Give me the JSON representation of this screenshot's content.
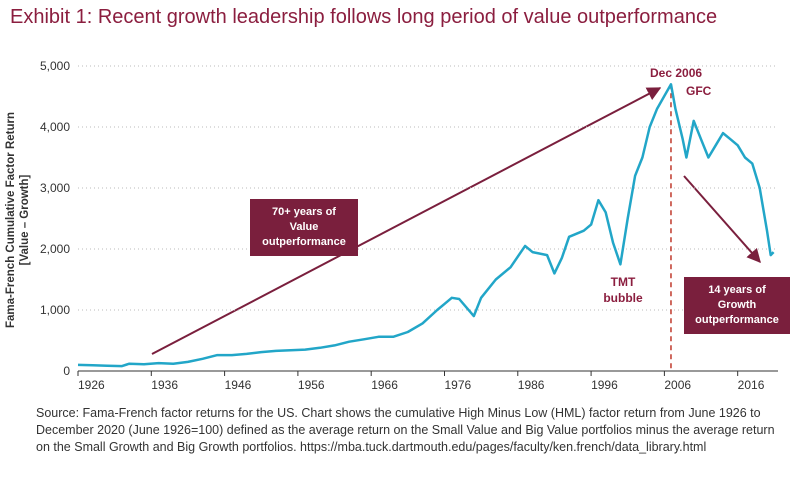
{
  "chart_data": {
    "type": "line",
    "title": "Exhibit 1: Recent growth leadership follows long period of value outperformance",
    "ylabel": [
      "Fama-French Cumulative Factor Return",
      "[Value – Growth]"
    ],
    "x": [
      1926,
      1928,
      1930,
      1932,
      1933,
      1935,
      1937,
      1939,
      1941,
      1943,
      1945,
      1947,
      1949,
      1951,
      1953,
      1955,
      1957,
      1959,
      1961,
      1963,
      1965,
      1967,
      1969,
      1971,
      1973,
      1975,
      1976,
      1977,
      1978,
      1980,
      1981,
      1983,
      1985,
      1987,
      1988,
      1990,
      1991,
      1992,
      1993,
      1995,
      1996,
      1997,
      1998,
      1999,
      2000,
      2001,
      2002,
      2003,
      2004,
      2005,
      2006.9,
      2007.5,
      2008.5,
      2009,
      2010,
      2011,
      2012,
      2013,
      2014,
      2015,
      2016,
      2017,
      2018,
      2019,
      2020,
      2020.5,
      2020.9
    ],
    "values": [
      100,
      95,
      85,
      80,
      120,
      110,
      130,
      120,
      150,
      200,
      260,
      260,
      280,
      310,
      330,
      340,
      350,
      380,
      420,
      480,
      520,
      560,
      560,
      640,
      780,
      1000,
      1100,
      1200,
      1180,
      900,
      1200,
      1500,
      1700,
      2050,
      1950,
      1900,
      1600,
      1850,
      2200,
      2300,
      2400,
      2800,
      2600,
      2100,
      1750,
      2500,
      3200,
      3500,
      4000,
      4300,
      4700,
      4300,
      3800,
      3500,
      4100,
      3800,
      3500,
      3700,
      3900,
      3800,
      3700,
      3500,
      3400,
      3000,
      2300,
      1900,
      1950
    ],
    "color": "#22a6c8",
    "xlim": [
      1926,
      2021.5
    ],
    "xticks": [
      1926,
      1936,
      1946,
      1956,
      1966,
      1976,
      1986,
      1996,
      2006,
      2016
    ],
    "ylim": [
      0,
      5000
    ],
    "yticks": [
      0,
      {
        "value": 1000,
        "label": "1,000"
      },
      {
        "value": 2000,
        "label": "2,000"
      },
      {
        "value": 3000,
        "label": "3,000"
      },
      {
        "value": 4000,
        "label": "4,000"
      },
      {
        "value": 5000,
        "label": "5,000"
      }
    ],
    "grid": true,
    "annotations": {
      "peak": "Dec 2006",
      "gfc": "GFC",
      "tmt": "TMT bubble",
      "value_box": "70+ years of Value outperformance",
      "growth_box": "14 years of Growth outperformance"
    },
    "source": "Source: Fama-French factor returns for the US. Chart shows the cumulative High Minus Low (HML) factor return from June 1926 to December 2020 (June 1926=100) defined as the average return on the Small Value and Big Value portfolios minus the average return on the Small Growth and Big Growth portfolios. https://mba.tuck.dartmouth.edu/pages/faculty/ken.french/data_library.html"
  }
}
